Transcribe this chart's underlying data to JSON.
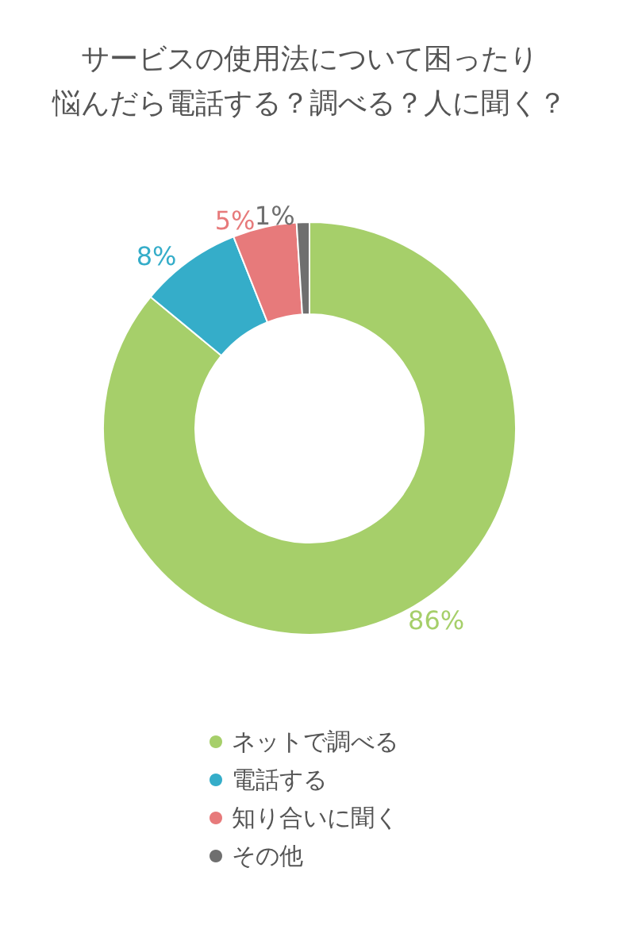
{
  "chart_data": {
    "type": "donut",
    "title": "サービスの使用法について困ったり悩んだら電話する？調べる？人に聞く？",
    "categories": [
      "ネットで調べる",
      "電話する",
      "知り合いに聞く",
      "その他"
    ],
    "values": [
      86,
      8,
      5,
      1
    ],
    "colors": [
      "#a6cf6a",
      "#35adc9",
      "#e77a7b",
      "#6f6f6f"
    ],
    "value_labels": [
      "86%",
      "8%",
      "5%",
      "1%"
    ],
    "legend": "bottom"
  }
}
